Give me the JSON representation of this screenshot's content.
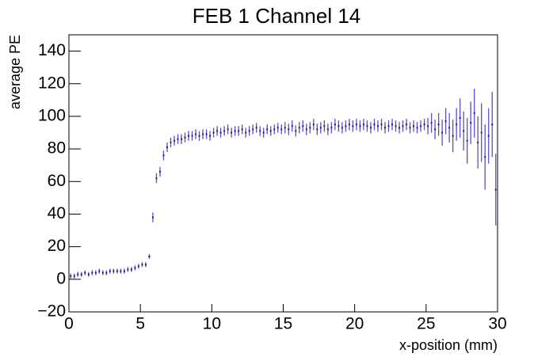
{
  "chart_data": {
    "type": "errorbar",
    "title": "FEB 1 Channel 14",
    "x_label": "x-position (mm)",
    "y_label": "average PE",
    "x": [
      0.125,
      0.375,
      0.625,
      0.875,
      1.125,
      1.375,
      1.625,
      1.875,
      2.125,
      2.375,
      2.625,
      2.875,
      3.125,
      3.375,
      3.625,
      3.875,
      4.125,
      4.375,
      4.625,
      4.875,
      5.125,
      5.375,
      5.625,
      5.875,
      6.125,
      6.375,
      6.625,
      6.875,
      7.125,
      7.375,
      7.625,
      7.875,
      8.125,
      8.375,
      8.625,
      8.875,
      9.125,
      9.375,
      9.625,
      9.875,
      10.125,
      10.375,
      10.625,
      10.875,
      11.125,
      11.375,
      11.625,
      11.875,
      12.125,
      12.375,
      12.625,
      12.875,
      13.125,
      13.375,
      13.625,
      13.875,
      14.125,
      14.375,
      14.625,
      14.875,
      15.125,
      15.375,
      15.625,
      15.875,
      16.125,
      16.375,
      16.625,
      16.875,
      17.125,
      17.375,
      17.625,
      17.875,
      18.125,
      18.375,
      18.625,
      18.875,
      19.125,
      19.375,
      19.625,
      19.875,
      20.125,
      20.375,
      20.625,
      20.875,
      21.125,
      21.375,
      21.625,
      21.875,
      22.125,
      22.375,
      22.625,
      22.875,
      23.125,
      23.375,
      23.625,
      23.875,
      24.125,
      24.375,
      24.625,
      24.875,
      25.125,
      25.375,
      25.625,
      25.875,
      26.125,
      26.375,
      26.625,
      26.875,
      27.125,
      27.375,
      27.625,
      27.875,
      28.125,
      28.375,
      28.625,
      28.875,
      29.125,
      29.375,
      29.625,
      29.875
    ],
    "series": [
      {
        "color": "#5b4fc9",
        "marker_color": "#1c1a6e",
        "values": [
          2,
          2,
          3,
          3,
          4,
          3,
          4,
          4,
          5,
          4,
          4,
          5,
          5,
          5,
          5,
          5,
          6,
          6,
          7,
          8,
          9,
          9,
          14,
          38,
          62,
          66,
          76,
          81,
          84,
          85,
          86,
          86,
          87,
          88,
          88,
          89,
          88,
          89,
          89,
          88,
          90,
          91,
          90,
          91,
          92,
          90,
          91,
          91,
          92,
          90,
          91,
          92,
          93,
          91,
          90,
          92,
          91,
          92,
          93,
          92,
          93,
          92,
          94,
          91,
          93,
          94,
          92,
          93,
          95,
          92,
          93,
          94,
          92,
          93,
          95,
          94,
          93,
          94,
          95,
          94,
          95,
          94,
          95,
          94,
          93,
          95,
          94,
          95,
          93,
          94,
          95,
          94,
          93,
          94,
          95,
          93,
          94,
          93,
          94,
          95,
          94,
          96,
          92,
          95,
          90,
          97,
          93,
          88,
          95,
          99,
          91,
          85,
          96,
          102,
          84,
          90,
          75,
          88,
          95,
          55
        ],
        "errors": [
          1.5,
          1.5,
          1.5,
          1.5,
          1.5,
          1.5,
          1.5,
          1.5,
          1.5,
          1.5,
          1.5,
          1.5,
          1.5,
          1.5,
          1.5,
          1.5,
          1.5,
          1.5,
          1.5,
          1.5,
          1.5,
          1.5,
          1.5,
          3,
          3,
          3,
          3,
          3,
          3,
          3,
          3,
          3,
          3,
          3,
          3,
          3,
          3,
          3,
          3,
          3,
          3,
          3,
          3,
          3,
          3,
          3,
          3,
          3,
          3,
          3,
          3,
          3,
          3,
          3,
          3,
          3,
          3,
          3,
          3,
          3,
          3.5,
          3.5,
          3.5,
          3.5,
          3.5,
          3.5,
          3.5,
          3.5,
          3.5,
          3.5,
          3.5,
          3.5,
          3.5,
          3.5,
          3.5,
          3.5,
          3.5,
          3.5,
          3.5,
          3.5,
          3.5,
          3.5,
          3.5,
          3.5,
          3.5,
          3.5,
          3.5,
          3.5,
          3.5,
          3.5,
          3.5,
          3.5,
          3.5,
          3.5,
          3.5,
          3.5,
          3.5,
          3.5,
          3.5,
          3.5,
          5,
          6,
          6,
          7,
          8,
          8,
          9,
          10,
          10,
          12,
          12,
          14,
          13,
          15,
          16,
          18,
          20,
          17,
          20,
          22
        ]
      }
    ],
    "xlim": [
      0,
      30
    ],
    "ylim": [
      -20,
      150
    ],
    "xticks": [
      0,
      5,
      10,
      15,
      20,
      25,
      30
    ],
    "yticks": [
      {
        "value": -20,
        "label": "−20"
      },
      0,
      20,
      40,
      60,
      80,
      100,
      120,
      140
    ]
  }
}
